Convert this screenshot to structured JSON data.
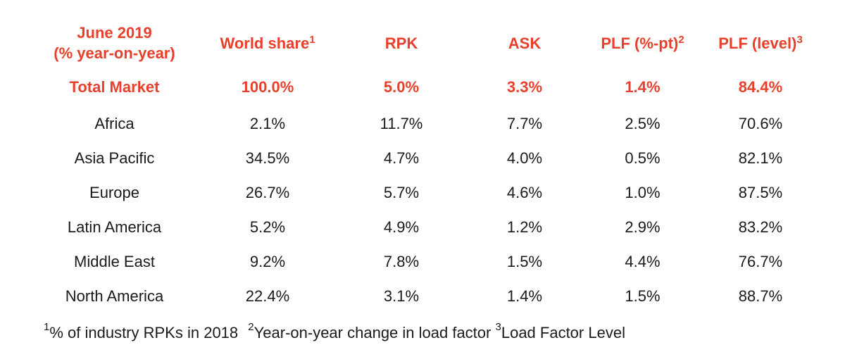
{
  "accent_color": "#e8402c",
  "header": {
    "period_line1": "June 2019",
    "period_line2": "(% year-on-year)",
    "world_share": "World share",
    "world_share_sup": "1",
    "rpk": "RPK",
    "ask": "ASK",
    "plf_pt": "PLF (%-pt)",
    "plf_pt_sup": "2",
    "plf_level": "PLF (level)",
    "plf_level_sup": "3"
  },
  "rows": [
    {
      "region": "Total Market",
      "world_share": "100.0%",
      "rpk": "5.0%",
      "ask": "3.3%",
      "plf_pt": "1.4%",
      "plf_level": "84.4%"
    },
    {
      "region": "Africa",
      "world_share": "2.1%",
      "rpk": "11.7%",
      "ask": "7.7%",
      "plf_pt": "2.5%",
      "plf_level": "70.6%"
    },
    {
      "region": "Asia Pacific",
      "world_share": "34.5%",
      "rpk": "4.7%",
      "ask": "4.0%",
      "plf_pt": "0.5%",
      "plf_level": "82.1%"
    },
    {
      "region": "Europe",
      "world_share": "26.7%",
      "rpk": "5.7%",
      "ask": "4.6%",
      "plf_pt": "1.0%",
      "plf_level": "87.5%"
    },
    {
      "region": "Latin America",
      "world_share": "5.2%",
      "rpk": "4.9%",
      "ask": "1.2%",
      "plf_pt": "2.9%",
      "plf_level": "83.2%"
    },
    {
      "region": "Middle East",
      "world_share": "9.2%",
      "rpk": "7.8%",
      "ask": "1.5%",
      "plf_pt": "4.4%",
      "plf_level": "76.7%"
    },
    {
      "region": "North America",
      "world_share": "22.4%",
      "rpk": "3.1%",
      "ask": "1.4%",
      "plf_pt": "1.5%",
      "plf_level": "88.7%"
    }
  ],
  "footnotes": {
    "n1_mark": "1",
    "n1_text": "% of industry RPKs in 2018",
    "n2_mark": "2",
    "n2_text": "Year-on-year change in load factor",
    "n3_mark": "3",
    "n3_text": "Load Factor Level"
  }
}
